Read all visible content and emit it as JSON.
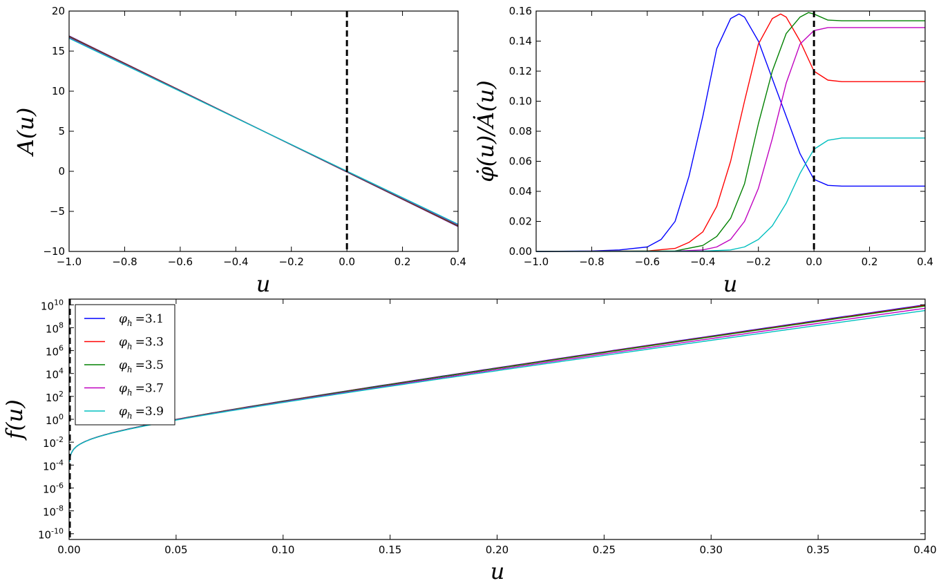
{
  "colors": {
    "series": [
      "#0000ff",
      "#ff0000",
      "#008000",
      "#bf00bf",
      "#00bfbf"
    ],
    "marker": "#000000"
  },
  "chart_data": [
    {
      "id": "A",
      "type": "line",
      "xlabel": "u",
      "ylabel": "A(u)",
      "xlim": [
        -1.0,
        0.4
      ],
      "ylim": [
        -10,
        20
      ],
      "x_ticks": [
        "−1.0",
        "−0.8",
        "−0.6",
        "−0.4",
        "−0.2",
        "0.0",
        "0.2",
        "0.4"
      ],
      "y_ticks": [
        "−10",
        "−5",
        "0",
        "5",
        "10",
        "15",
        "20"
      ],
      "grid": false,
      "vline_x": 0.0,
      "series": [
        {
          "x": [
            -1.0,
            0.4
          ],
          "y": [
            16.9,
            -6.9
          ]
        },
        {
          "x": [
            -1.0,
            0.4
          ],
          "y": [
            16.85,
            -6.85
          ]
        },
        {
          "x": [
            -1.0,
            0.4
          ],
          "y": [
            16.8,
            -6.8
          ]
        },
        {
          "x": [
            -1.0,
            0.4
          ],
          "y": [
            16.7,
            -6.7
          ]
        },
        {
          "x": [
            -1.0,
            0.4
          ],
          "y": [
            16.6,
            -6.6
          ]
        }
      ]
    },
    {
      "id": "B",
      "type": "line",
      "xlabel": "u",
      "ylabel": "φ̇(u)/Ȧ(u)",
      "xlim": [
        -1.0,
        0.4
      ],
      "ylim": [
        0.0,
        0.16
      ],
      "x_ticks": [
        "−1.0",
        "−0.8",
        "−0.6",
        "−0.4",
        "−0.2",
        "0.0",
        "0.2",
        "0.4"
      ],
      "y_ticks": [
        "0.00",
        "0.02",
        "0.04",
        "0.06",
        "0.08",
        "0.10",
        "0.12",
        "0.14",
        "0.16"
      ],
      "grid": false,
      "vline_x": 0.0,
      "series": [
        {
          "x": [
            -1.0,
            -0.8,
            -0.7,
            -0.6,
            -0.55,
            -0.5,
            -0.45,
            -0.4,
            -0.35,
            -0.3,
            -0.27,
            -0.25,
            -0.2,
            -0.15,
            -0.1,
            -0.05,
            0.0,
            0.05,
            0.1,
            0.2,
            0.4
          ],
          "y": [
            0.0,
            0.0003,
            0.001,
            0.003,
            0.008,
            0.02,
            0.05,
            0.09,
            0.135,
            0.155,
            0.158,
            0.156,
            0.14,
            0.115,
            0.09,
            0.065,
            0.048,
            0.044,
            0.0435,
            0.0435,
            0.0435
          ]
        },
        {
          "x": [
            -1.0,
            -0.6,
            -0.5,
            -0.45,
            -0.4,
            -0.35,
            -0.3,
            -0.25,
            -0.2,
            -0.15,
            -0.12,
            -0.1,
            -0.05,
            0.0,
            0.05,
            0.1,
            0.2,
            0.4
          ],
          "y": [
            0.0,
            0.0003,
            0.002,
            0.006,
            0.013,
            0.03,
            0.06,
            0.1,
            0.138,
            0.155,
            0.158,
            0.156,
            0.14,
            0.12,
            0.114,
            0.113,
            0.113,
            0.113
          ]
        },
        {
          "x": [
            -1.0,
            -0.5,
            -0.4,
            -0.35,
            -0.3,
            -0.25,
            -0.2,
            -0.15,
            -0.1,
            -0.05,
            -0.02,
            0.0,
            0.05,
            0.1,
            0.2,
            0.4
          ],
          "y": [
            0.0,
            0.0003,
            0.004,
            0.01,
            0.022,
            0.045,
            0.085,
            0.12,
            0.145,
            0.156,
            0.159,
            0.158,
            0.154,
            0.1535,
            0.1535,
            0.1535
          ]
        },
        {
          "x": [
            -1.0,
            -0.5,
            -0.4,
            -0.35,
            -0.3,
            -0.25,
            -0.2,
            -0.15,
            -0.1,
            -0.05,
            0.0,
            0.05,
            0.1,
            0.2,
            0.4
          ],
          "y": [
            0.0,
            0.0002,
            0.001,
            0.003,
            0.008,
            0.02,
            0.042,
            0.075,
            0.112,
            0.138,
            0.147,
            0.149,
            0.149,
            0.149,
            0.149
          ]
        },
        {
          "x": [
            -1.0,
            -0.4,
            -0.3,
            -0.25,
            -0.2,
            -0.15,
            -0.1,
            -0.05,
            0.0,
            0.05,
            0.1,
            0.2,
            0.4
          ],
          "y": [
            0.0,
            0.0002,
            0.001,
            0.003,
            0.008,
            0.017,
            0.032,
            0.052,
            0.068,
            0.074,
            0.0755,
            0.0755,
            0.0755
          ]
        }
      ]
    },
    {
      "id": "C",
      "type": "line",
      "xlabel": "u",
      "ylabel": "f(u)",
      "xlim": [
        0.0,
        0.4
      ],
      "ylim_log10": [
        -10.5,
        10.5
      ],
      "y_scale": "log",
      "x_ticks": [
        "0.00",
        "0.05",
        "0.10",
        "0.15",
        "0.20",
        "0.25",
        "0.30",
        "0.35",
        "0.40"
      ],
      "y_ticks": [
        {
          "base": "10",
          "exp": "-10"
        },
        {
          "base": "10",
          "exp": "-8"
        },
        {
          "base": "10",
          "exp": "-6"
        },
        {
          "base": "10",
          "exp": "-4"
        },
        {
          "base": "10",
          "exp": "-2"
        },
        {
          "base": "10",
          "exp": "0"
        },
        {
          "base": "10",
          "exp": "2"
        },
        {
          "base": "10",
          "exp": "4"
        },
        {
          "base": "10",
          "exp": "6"
        },
        {
          "base": "10",
          "exp": "8"
        },
        {
          "base": "10",
          "exp": "10"
        }
      ],
      "grid": false,
      "vline_x": 0.0,
      "legend_position": "upper-left",
      "legend": [
        {
          "symbol": "φ",
          "sub": "h",
          "value": "=3.1"
        },
        {
          "symbol": "φ",
          "sub": "h",
          "value": "=3.3"
        },
        {
          "symbol": "φ",
          "sub": "h",
          "value": "=3.5"
        },
        {
          "symbol": "φ",
          "sub": "h",
          "value": "=3.7"
        },
        {
          "symbol": "φ",
          "sub": "h",
          "value": "=3.9"
        }
      ],
      "series_log10_end": [
        10.0,
        9.95,
        9.9,
        9.7,
        9.5
      ]
    }
  ]
}
